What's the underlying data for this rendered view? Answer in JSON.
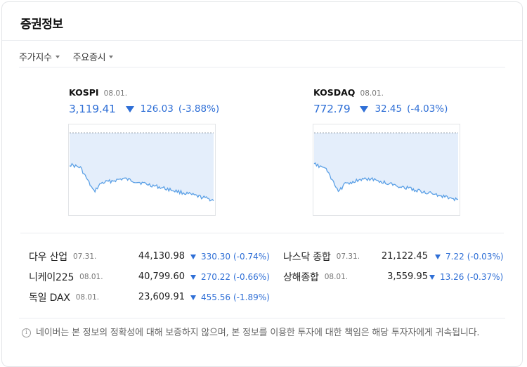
{
  "header": {
    "title": "증권정보"
  },
  "tabs": [
    {
      "label": "주가지수"
    },
    {
      "label": "주요증시"
    }
  ],
  "indices": [
    {
      "name": "KOSPI",
      "date": "08.01.",
      "value": "3,119.41",
      "change": "126.03",
      "percent": "(-3.88%)",
      "direction": "down"
    },
    {
      "name": "KOSDAQ",
      "date": "08.01.",
      "value": "772.79",
      "change": "32.45",
      "percent": "(-4.03%)",
      "direction": "down"
    }
  ],
  "world": [
    {
      "name": "다우 산업",
      "date": "07.31.",
      "value": "44,130.98",
      "change": "330.30",
      "percent": "(-0.74%)",
      "direction": "down"
    },
    {
      "name": "나스닥 종합",
      "date": "07.31.",
      "value": "21,122.45",
      "change": "7.22",
      "percent": "(-0.03%)",
      "direction": "down"
    },
    {
      "name": "니케이225",
      "date": "08.01.",
      "value": "40,799.60",
      "change": "270.22",
      "percent": "(-0.66%)",
      "direction": "down"
    },
    {
      "name": "상해종합",
      "date": "08.01.",
      "value": "3,559.95",
      "change": "13.26",
      "percent": "(-0.37%)",
      "direction": "down"
    },
    {
      "name": "독일 DAX",
      "date": "08.01.",
      "value": "23,609.91",
      "change": "455.56",
      "percent": "(-1.89%)",
      "direction": "down"
    }
  ],
  "notice": {
    "icon": "info-icon",
    "text": "네이버는 본 정보의 정확성에 대해 보증하지 않으며, 본 정보를 이용한 투자에 대한 책임은 해당 투자자에게 귀속됩니다."
  },
  "colors": {
    "down": "#2f6fd6",
    "chart_line": "#5ba0e6",
    "chart_fill": "#e4eefb",
    "baseline": "#9aa3ad"
  }
}
